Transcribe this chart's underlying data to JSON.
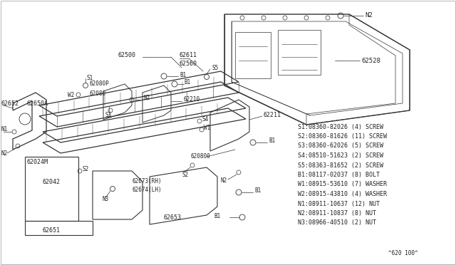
{
  "bg_color": "#ffffff",
  "line_color": "#333333",
  "text_color": "#222222",
  "legend_lines": [
    "S1:08360-82026 (4) SCREW",
    "S2:08360-81626 (11) SCREW",
    "S3:08360-62026 (5) SCREW",
    "S4:08510-51623 (2) SCREW",
    "S5:08363-81652 (2) SCREW",
    "B1:08117-02037 (8) BOLT",
    "W1:08915-53610 (7) WASHER",
    "W2:08915-43810 (4) WASHER",
    "N1:08911-10637 (12) NUT",
    "N2:08911-10837 (8) NUT",
    "N3:08966-40510 (2) NUT"
  ],
  "footer": "^620 100^"
}
